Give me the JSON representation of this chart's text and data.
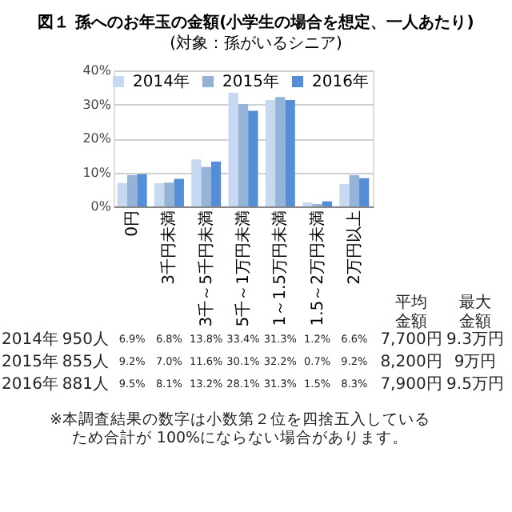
{
  "chart_data": {
    "type": "bar",
    "title": "図１ 孫へのお年玉の金額(小学生の場合を想定、一人あたり)",
    "subtitle": "(対象：孫がいるシニア)",
    "categories": [
      "0円",
      "3千円未満",
      "3千～5千円未満",
      "5千～1万円未満",
      "1～1.5万円未満",
      "1.5～2万円未満",
      "2万円以上"
    ],
    "series": [
      {
        "name": "2014年",
        "color": "#c6d9f1",
        "values": [
          6.9,
          6.8,
          13.8,
          33.4,
          31.3,
          1.2,
          6.6
        ],
        "value_labels": [
          "6.9%",
          "6.8%",
          "13.8%",
          "33.4%",
          "31.3%",
          "1.2%",
          "6.6%"
        ]
      },
      {
        "name": "2015年",
        "color": "#95b3d7",
        "values": [
          9.2,
          7.0,
          11.6,
          30.1,
          32.2,
          0.7,
          9.2
        ],
        "value_labels": [
          "9.2%",
          "7.0%",
          "11.6%",
          "30.1%",
          "32.2%",
          "0.7%",
          "9.2%"
        ]
      },
      {
        "name": "2016年",
        "color": "#558ed5",
        "values": [
          9.5,
          8.1,
          13.2,
          28.1,
          31.3,
          1.5,
          8.3
        ],
        "value_labels": [
          "9.5%",
          "8.1%",
          "13.2%",
          "28.1%",
          "31.3%",
          "1.5%",
          "8.3%"
        ]
      }
    ],
    "ylim": [
      0,
      40
    ],
    "yticks": [
      {
        "value": 0,
        "label": "0%"
      },
      {
        "value": 10,
        "label": "10%"
      },
      {
        "value": 20,
        "label": "20%"
      },
      {
        "value": 30,
        "label": "30%"
      },
      {
        "value": 40,
        "label": "40%"
      }
    ],
    "grid": "y",
    "legend": "top right",
    "annotations": [
      "950人",
      "855人",
      "881人",
      "平均金額",
      "最大金額",
      "7,700円",
      "8,200円",
      "7,900円",
      "9.3万円",
      "9万円",
      "9.5万円",
      "※本調査結果の数字は小数第２位を四捨五入しているため合計が 100%にならない場合があります。"
    ]
  }
}
